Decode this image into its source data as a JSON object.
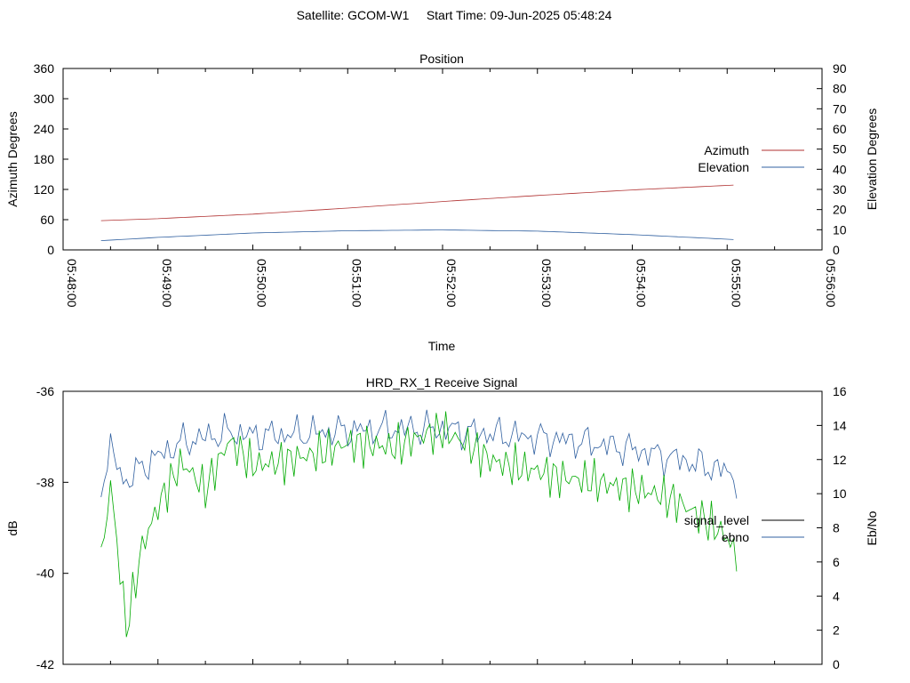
{
  "header": {
    "title": "Satellite: GCOM-W1     Start Time: 09-Jun-2025 05:48:24"
  },
  "chart_data": [
    {
      "type": "line",
      "title": "Position",
      "xlabel": "Time",
      "ylabel": "Azimuth Degrees",
      "y2label": "Elevation Degrees",
      "xlim": [
        "05:48:00",
        "05:56:00"
      ],
      "xticks": [
        "05:48:00",
        "05:49:00",
        "05:50:00",
        "05:51:00",
        "05:52:00",
        "05:53:00",
        "05:54:00",
        "05:55:00",
        "05:56:00"
      ],
      "ylim": [
        0,
        360
      ],
      "yticks": [
        "0",
        "60",
        "120",
        "180",
        "240",
        "300",
        "360"
      ],
      "y2lim": [
        0,
        90
      ],
      "y2ticks": [
        "0",
        "10",
        "20",
        "30",
        "40",
        "50",
        "60",
        "70",
        "80",
        "90"
      ],
      "grid": false,
      "legend_position": "right",
      "series": [
        {
          "name": "Azimuth",
          "axis": "y",
          "color": "#b03030",
          "x": [
            "05:48:24",
            "05:49:00",
            "05:50:00",
            "05:51:00",
            "05:52:00",
            "05:53:00",
            "05:54:00",
            "05:55:00",
            "05:55:06"
          ],
          "values": [
            58,
            62,
            71,
            83,
            96,
            108,
            119,
            128,
            129
          ]
        },
        {
          "name": "Elevation",
          "axis": "y2",
          "color": "#3060a0",
          "x": [
            "05:48:24",
            "05:49:00",
            "05:50:00",
            "05:51:00",
            "05:52:00",
            "05:53:00",
            "05:54:00",
            "05:55:00",
            "05:55:06"
          ],
          "values": [
            4.6,
            6.2,
            8.4,
            9.5,
            9.9,
            9.3,
            7.6,
            5.3,
            5.0
          ]
        }
      ]
    },
    {
      "type": "line",
      "title": "HRD_RX_1 Receive Signal",
      "xlabel": "",
      "ylabel": "dB",
      "y2label": "Eb/No",
      "xlim": [
        "05:48:00",
        "05:56:00"
      ],
      "ylim": [
        -42,
        -36
      ],
      "yticks": [
        "-36",
        "-38",
        "-40",
        "-42"
      ],
      "y2lim": [
        0,
        16
      ],
      "y2ticks": [
        "0",
        "2",
        "4",
        "6",
        "8",
        "10",
        "12",
        "14",
        "16"
      ],
      "grid": false,
      "legend_position": "right",
      "series": [
        {
          "name": "signal_level",
          "axis": "y",
          "color": "#00aa00",
          "x": [
            "05:48:24",
            "05:48:30",
            "05:48:40",
            "05:48:50",
            "05:49:00",
            "05:49:15",
            "05:49:30",
            "05:49:45",
            "05:50:00",
            "05:50:30",
            "05:51:00",
            "05:51:30",
            "05:52:00",
            "05:52:30",
            "05:53:00",
            "05:53:30",
            "05:54:00",
            "05:54:30",
            "05:55:00",
            "05:55:06"
          ],
          "values": [
            -39.6,
            -37.9,
            -41.2,
            -39.5,
            -38.7,
            -37.8,
            -38.4,
            -37.2,
            -37.6,
            -37.2,
            -37.0,
            -37.4,
            -37.1,
            -37.5,
            -37.5,
            -37.8,
            -38.3,
            -38.7,
            -39.2,
            -39.6
          ]
        },
        {
          "name": "ebno",
          "axis": "y2",
          "color": "#3060a0",
          "x": [
            "05:48:24",
            "05:48:30",
            "05:48:40",
            "05:48:50",
            "05:49:00",
            "05:49:15",
            "05:49:30",
            "05:49:45",
            "05:50:00",
            "05:50:30",
            "05:51:00",
            "05:51:30",
            "05:52:00",
            "05:52:30",
            "05:53:00",
            "05:53:30",
            "05:54:00",
            "05:54:30",
            "05:55:00",
            "05:55:06"
          ],
          "values": [
            10.5,
            12.5,
            10.6,
            11.6,
            12.2,
            13.0,
            13.3,
            13.6,
            13.4,
            13.5,
            13.7,
            13.8,
            13.8,
            13.5,
            13.3,
            13.0,
            12.6,
            12.0,
            11.3,
            10.8
          ]
        }
      ],
      "legend_color_signal_level": "#000000",
      "legend_color_ebno": "#3060a0"
    }
  ]
}
